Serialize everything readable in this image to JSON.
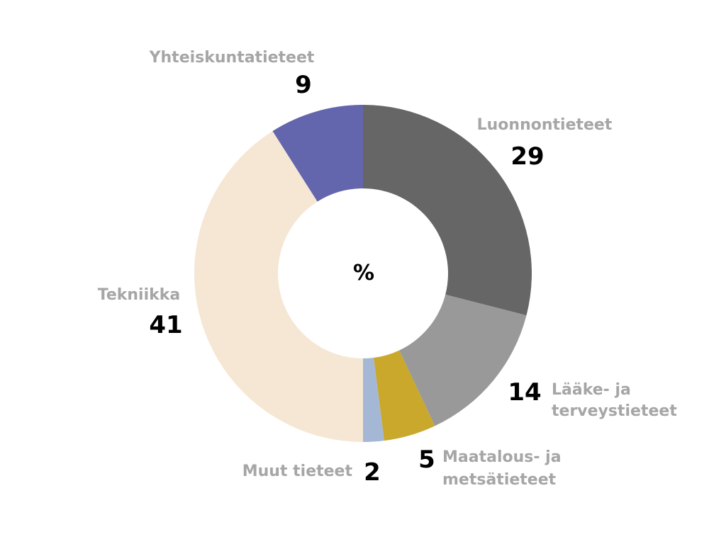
{
  "chart_data": {
    "type": "pie",
    "center_label": "%",
    "slices": [
      {
        "label": "Luonnontieteet",
        "value": 29,
        "color": "#666666"
      },
      {
        "label": "Lääke- ja terveystieteet",
        "value": 14,
        "color": "#999999"
      },
      {
        "label": "Maatalous- ja metsätieteet",
        "value": 5,
        "color": "#c9a82c"
      },
      {
        "label": "Muut tieteet",
        "value": 2,
        "color": "#a4b8d6"
      },
      {
        "label": "Tekniikka",
        "value": 41,
        "color": "#f5e7d4"
      },
      {
        "label": "Yhteiskuntatieteet",
        "value": 9,
        "color": "#6366ad"
      }
    ],
    "legend_placement": "around"
  }
}
